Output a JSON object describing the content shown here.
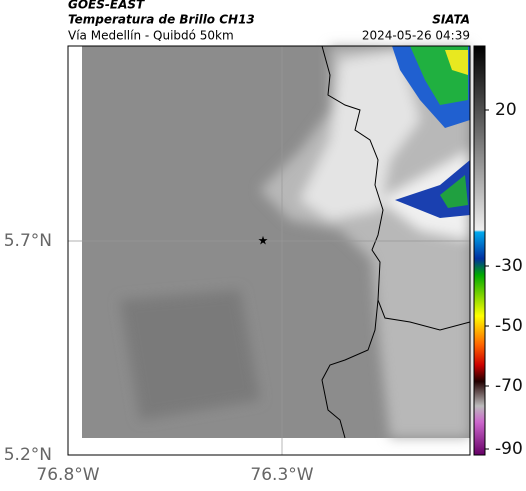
{
  "header": {
    "title": "GOES-EAST",
    "subtitle": "Temperatura de Brillo CH13",
    "location": "Vía Medellín - Quibdó 50km",
    "source": "SIATA",
    "datetime": "2024-05-26 04:39"
  },
  "axes": {
    "y_ticks": [
      "5.7°N",
      "5.2°N"
    ],
    "x_ticks": [
      "76.8°W",
      "76.3°W"
    ]
  },
  "colorbar": {
    "ticks": [
      "20",
      "-30",
      "-50",
      "-70",
      "-90"
    ]
  }
}
